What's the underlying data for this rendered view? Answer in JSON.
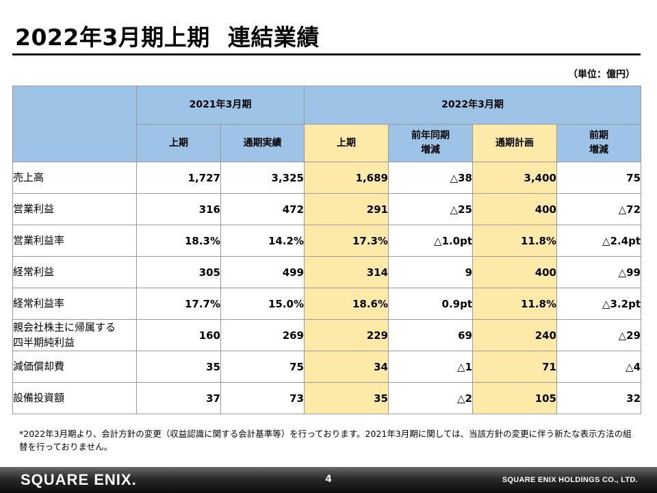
{
  "title": {
    "main": "2022年3月期上期",
    "sub": "連結業績"
  },
  "unit_note": "（単位：億円）",
  "table": {
    "header_row1": {
      "group_2021": "2021年3月期",
      "group_2022": "2022年3月期"
    },
    "header_row2": [
      {
        "lines": [
          "上期"
        ],
        "highlight": false
      },
      {
        "lines": [
          "通期実績"
        ],
        "highlight": false
      },
      {
        "lines": [
          "上期"
        ],
        "highlight": true
      },
      {
        "lines": [
          "前年同期",
          "増減"
        ],
        "highlight": false
      },
      {
        "lines": [
          "通期計画"
        ],
        "highlight": true
      },
      {
        "lines": [
          "前期",
          "増減"
        ],
        "highlight": false
      }
    ],
    "rows": [
      {
        "label": [
          "売上高"
        ],
        "values": [
          "1,727",
          "3,325",
          "1,689",
          "△38",
          "3,400",
          "75"
        ]
      },
      {
        "label": [
          "営業利益"
        ],
        "values": [
          "316",
          "472",
          "291",
          "△25",
          "400",
          "△72"
        ]
      },
      {
        "label": [
          "営業利益率"
        ],
        "values": [
          "18.3%",
          "14.2%",
          "17.3%",
          "△1.0pt",
          "11.8%",
          "△2.4pt"
        ]
      },
      {
        "label": [
          "経常利益"
        ],
        "values": [
          "305",
          "499",
          "314",
          "9",
          "400",
          "△99"
        ]
      },
      {
        "label": [
          "経常利益率"
        ],
        "values": [
          "17.7%",
          "15.0%",
          "18.6%",
          "0.9pt",
          "11.8%",
          "△3.2pt"
        ]
      },
      {
        "label": [
          "親会社株主に帰属する",
          "四半期純利益"
        ],
        "values": [
          "160",
          "269",
          "229",
          "69",
          "240",
          "△29"
        ]
      },
      {
        "label": [
          "減価償却費"
        ],
        "values": [
          "35",
          "75",
          "34",
          "△1",
          "71",
          "△4"
        ]
      },
      {
        "label": [
          "設備投資額"
        ],
        "values": [
          "37",
          "73",
          "35",
          "△2",
          "105",
          "32"
        ]
      }
    ]
  },
  "footnote": "*2022年3月期より、会計方針の変更（収益認識に関する会計基準等）を行っております。2021年3月期に関しては、当該方針の変更に伴う新たな表示方法の組替を行っておりません。",
  "footer": {
    "logo_text": "SQUARE ENIX.",
    "page_number": "4",
    "company": "SQUARE ENIX HOLDINGS CO., LTD."
  },
  "colors": {
    "header_blue": "#9dc3e6",
    "highlight_yellow": "#fde9a8"
  }
}
